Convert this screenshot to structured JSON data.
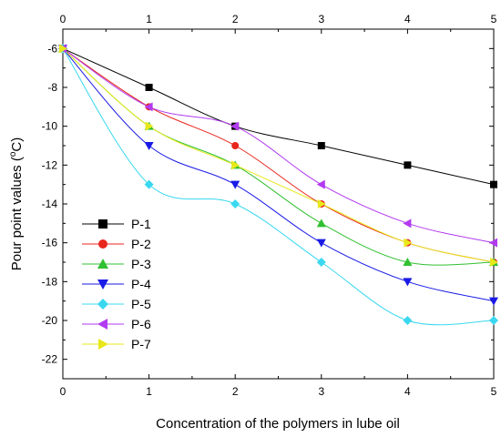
{
  "chart_data": {
    "type": "line",
    "title": "",
    "xlabel": "Concentration of the polymers in lube oil",
    "ylabel_main": "Pour point values (",
    "ylabel_sup": "o",
    "ylabel_tail": "C)",
    "xlim": [
      0,
      5
    ],
    "ylim": [
      -23,
      -5
    ],
    "x_ticks": [
      0,
      1,
      2,
      3,
      4,
      5
    ],
    "x_tick_labels": [
      "0",
      "1",
      "2",
      "3",
      "4",
      "5"
    ],
    "y_ticks": [
      -22,
      -20,
      -18,
      -16,
      -14,
      -12,
      -10,
      -8,
      -6
    ],
    "y_tick_labels": [
      "-22",
      "-20",
      "-18",
      "-16",
      "-14",
      "-12",
      "-10",
      "-8",
      "-6"
    ],
    "grid": false,
    "legend_position": "lower-left",
    "x": [
      0,
      1,
      2,
      3,
      4,
      5
    ],
    "series": [
      {
        "name": "P-1",
        "values": [
          -6,
          -8,
          -10,
          -11,
          -12,
          -13
        ],
        "color": "#000000",
        "marker": "square"
      },
      {
        "name": "P-2",
        "values": [
          -6,
          -9,
          -11,
          -14,
          -16,
          -17
        ],
        "color": "#e8261d",
        "marker": "circle"
      },
      {
        "name": "P-3",
        "values": [
          -6,
          -10,
          -12,
          -15,
          -17,
          -17
        ],
        "color": "#30c030",
        "marker": "triangle-up"
      },
      {
        "name": "P-4",
        "values": [
          -6,
          -11,
          -13,
          -16,
          -18,
          -19
        ],
        "color": "#1a1ae6",
        "marker": "triangle-down"
      },
      {
        "name": "P-5",
        "values": [
          -6,
          -13,
          -14,
          -17,
          -20,
          -20
        ],
        "color": "#3ad8f0",
        "marker": "diamond"
      },
      {
        "name": "P-6",
        "values": [
          -6,
          -9,
          -10,
          -13,
          -15,
          -16
        ],
        "color": "#b23bf0",
        "marker": "triangle-left"
      },
      {
        "name": "P-7",
        "values": [
          -6,
          -10,
          -12,
          -14,
          -16,
          -17
        ],
        "color": "#e8e81a",
        "marker": "triangle-right"
      }
    ]
  }
}
